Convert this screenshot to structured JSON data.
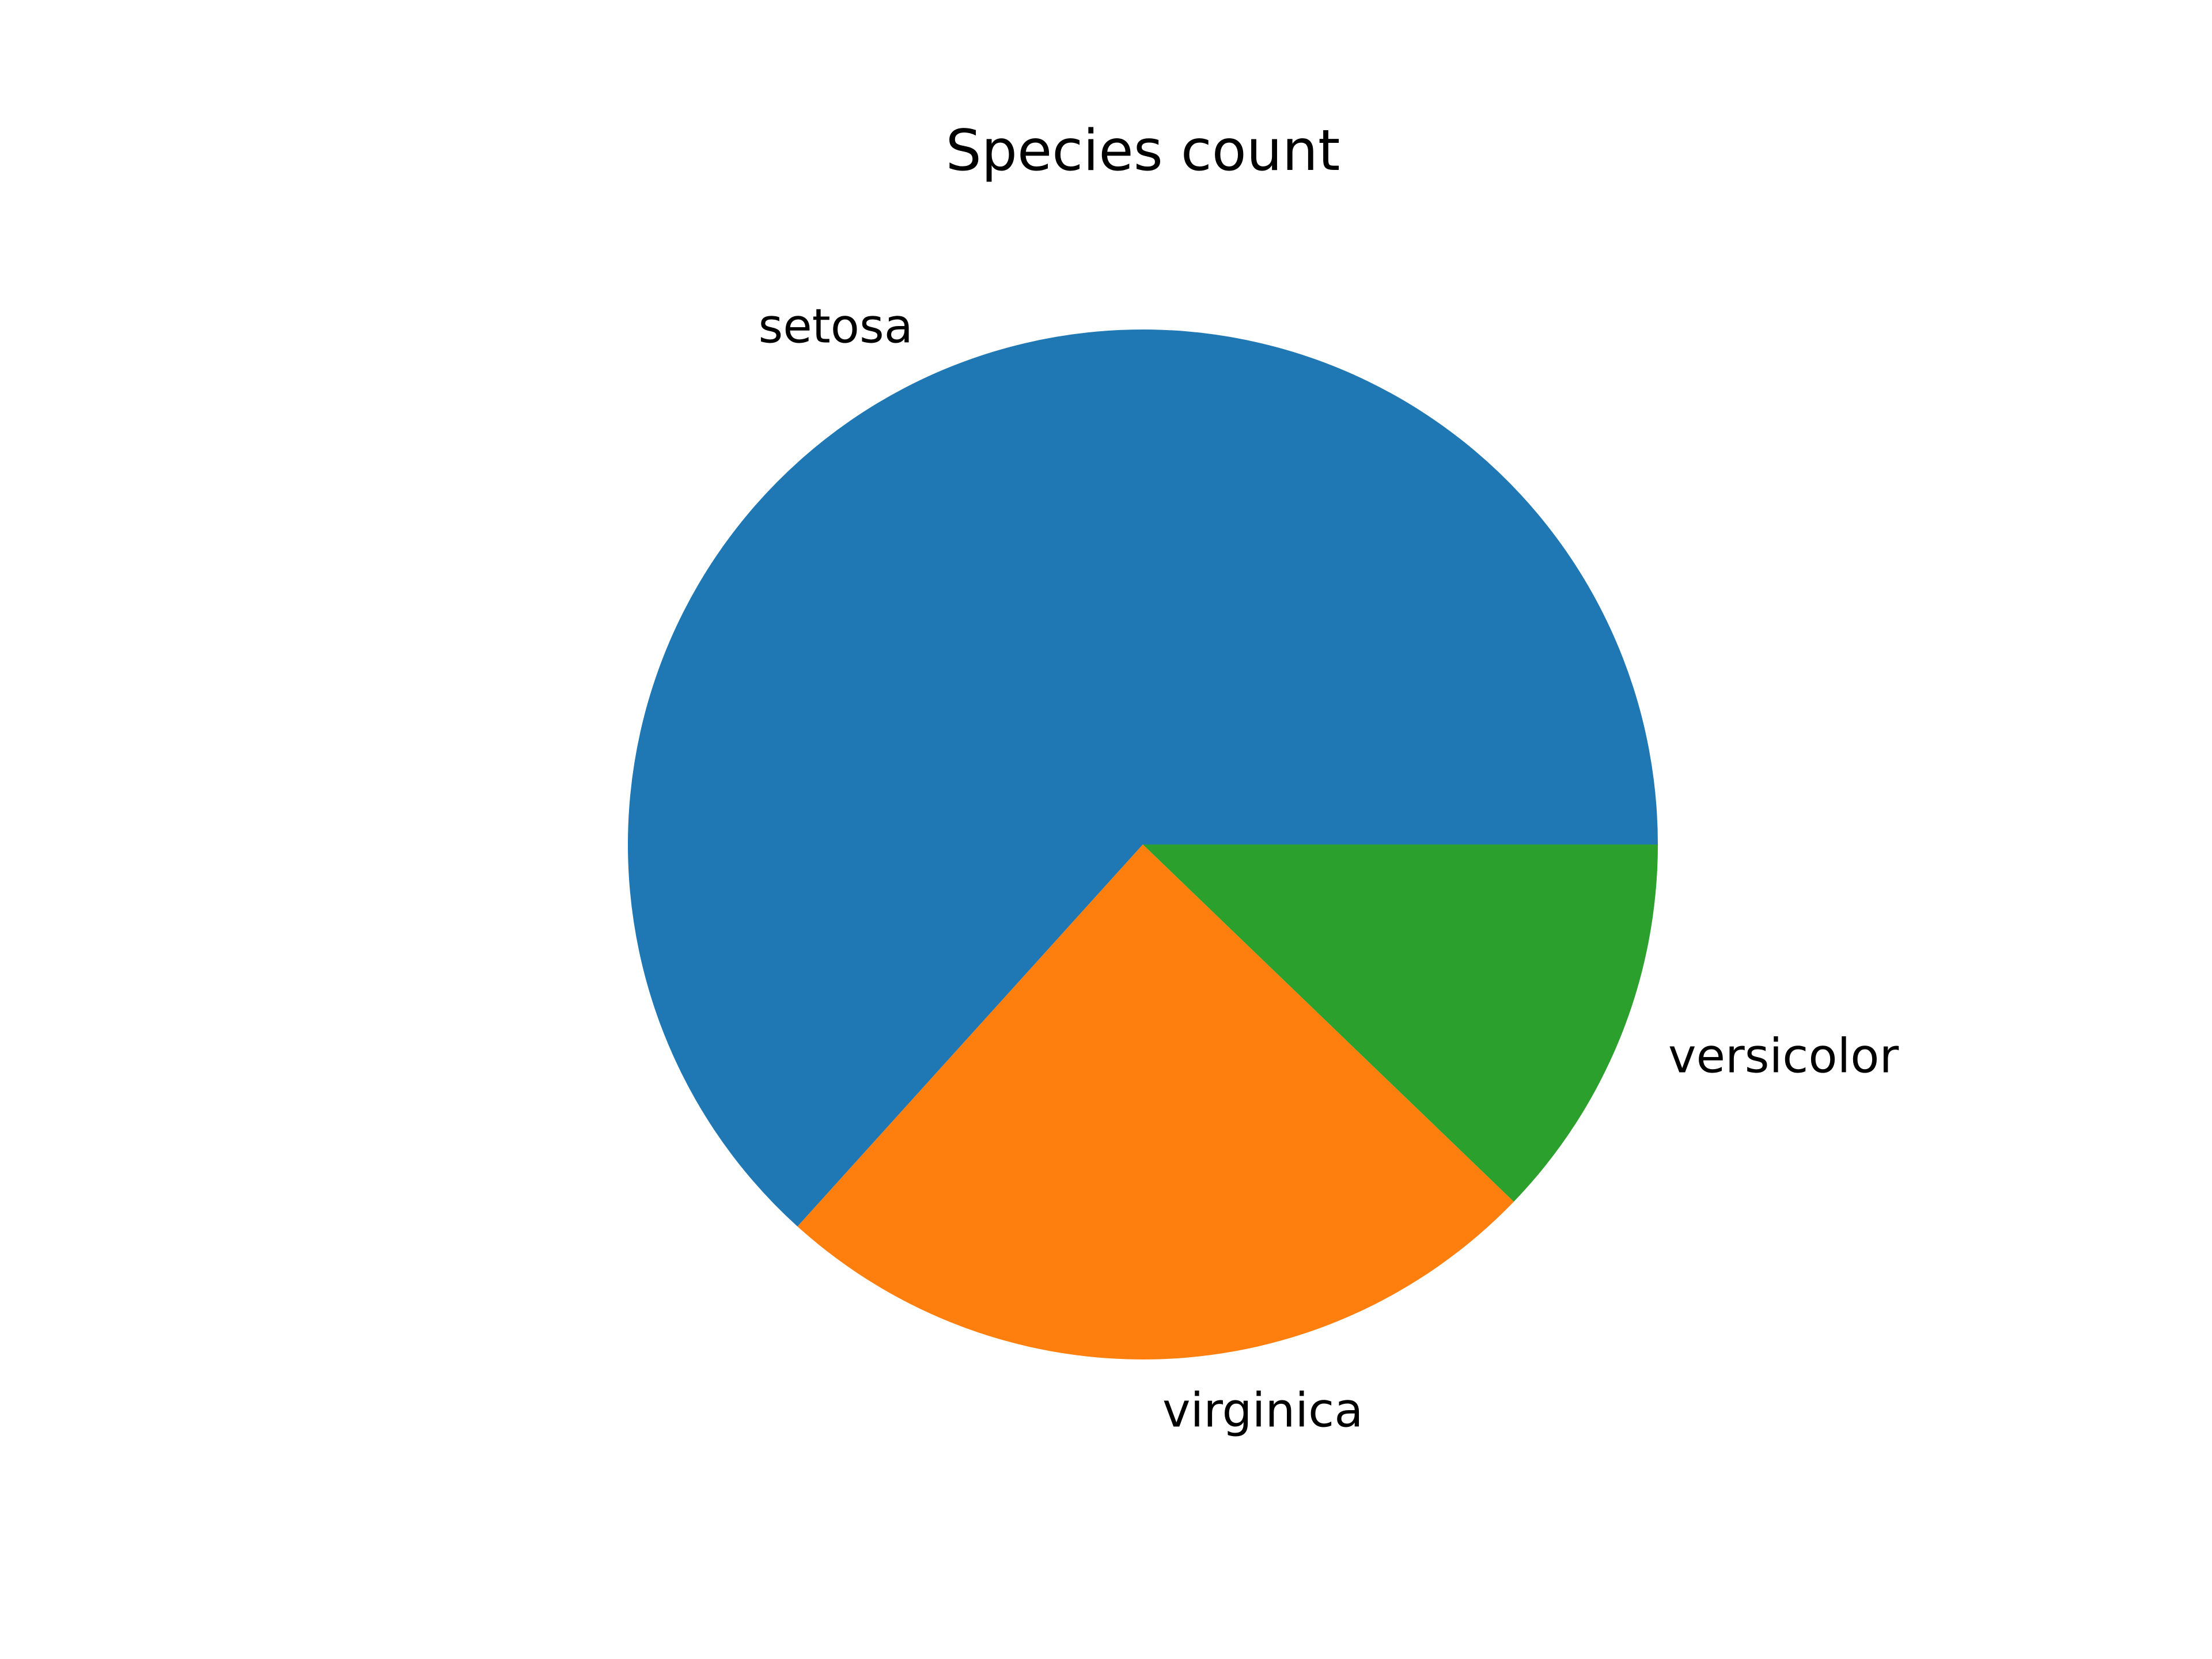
{
  "chart_data": {
    "type": "pie",
    "title": "Species count",
    "start_angle_degrees": 0,
    "direction": "counterclockwise",
    "slices": [
      {
        "label": "setosa",
        "value": 63.3,
        "color": "#1f77b4"
      },
      {
        "label": "virginica",
        "value": 24.5,
        "color": "#ff7f0e"
      },
      {
        "label": "versicolor",
        "value": 12.2,
        "color": "#2ca02c"
      }
    ]
  }
}
